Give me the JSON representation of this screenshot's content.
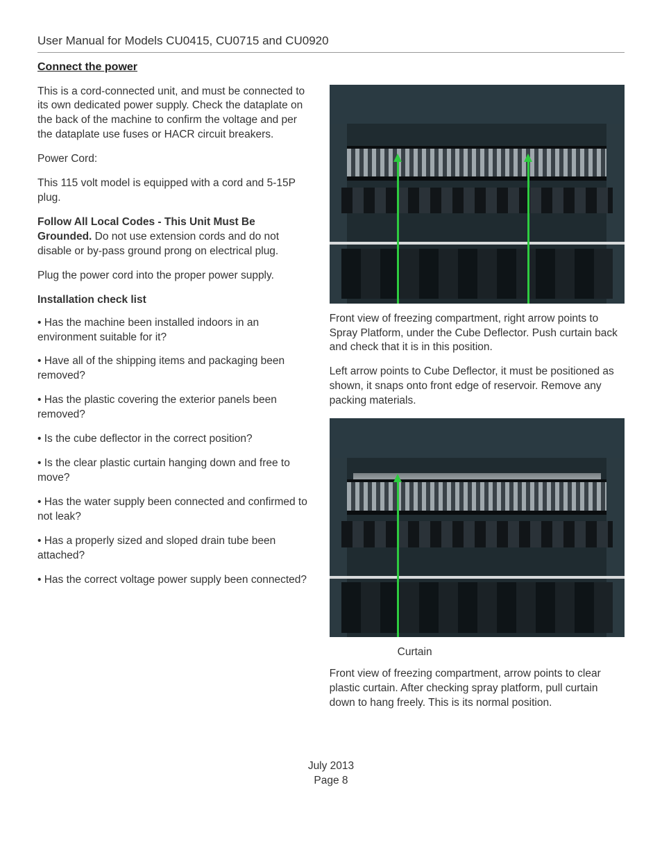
{
  "header": {
    "title": "User Manual for Models CU0415, CU0715 and CU0920"
  },
  "section": {
    "title": "Connect the power"
  },
  "left": {
    "intro": "This is a cord-connected unit, and must be connected to its own dedicated power supply. Check the dataplate on the back of the machine to confirm the voltage and per the dataplate use fuses or HACR circuit breakers.",
    "power_cord_label": "Power Cord:",
    "power_cord_text": "This 115 volt model is equipped with a cord and 5-15P plug.",
    "codes_bold": "Follow All Local Codes - This Unit Must Be Grounded.",
    "codes_rest": " Do not use extension cords and do not disable or by-pass ground prong on electrical plug.",
    "plug_text": "Plug the power cord into the proper power supply.",
    "checklist_title": "Installation check list",
    "items": [
      "•  Has the machine been installed indoors in an environment suitable for it?",
      "•  Have all of the shipping items and packaging been removed?",
      "•  Has the plastic covering the exterior panels been removed?",
      "•  Is the cube deflector in the correct position?",
      "•  Is the clear plastic curtain hanging down and free to move?",
      "•  Has the water supply been connected and confirmed to not leak?",
      "•  Has a properly sized and sloped drain tube been attached?",
      "•  Has the correct voltage power supply been connected?"
    ]
  },
  "right": {
    "fig1_caption": "Front view of freezing compartment, right arrow points to Spray Platform, under the Cube Deflector. Push curtain back and check that it is in this position.",
    "fig1_caption2": "Left arrow points to Cube Deflector, it must be positioned as shown, it snaps onto front edge of reservoir. Remove any packing materials.",
    "curtain_label": "Curtain",
    "fig2_caption": "Front view of freezing compartment, arrow points to clear plastic curtain. After checking spray platform, pull curtain down to hang freely. This is its normal position."
  },
  "footer": {
    "date": "July 2013",
    "page": "Page 8"
  },
  "style": {
    "arrow_color": "#2ecc40",
    "image_bg": "#1f2b30"
  }
}
